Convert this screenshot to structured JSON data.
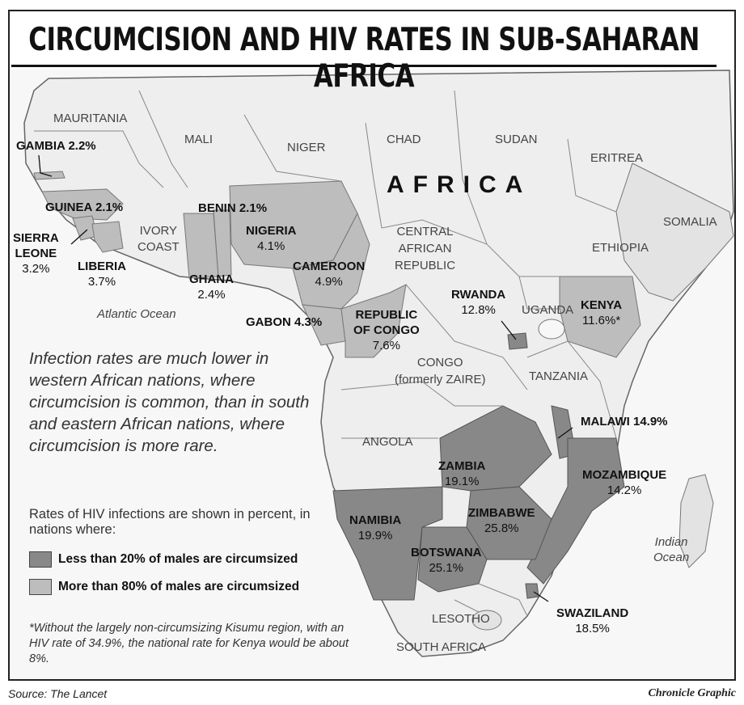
{
  "title": "CIRCUMCISION AND HIV RATES IN SUB-SAHARAN AFRICA",
  "colors": {
    "dark": "#888888",
    "light": "#bdbdbd",
    "land": "#eeeeee",
    "other_land": "#e3e3e3",
    "ocean": "#f7f7f7",
    "border": "#777777"
  },
  "continent_label": "AFRICA",
  "oceans": {
    "atlantic": "Atlantic Ocean",
    "indian_line1": "Indian",
    "indian_line2": "Ocean"
  },
  "countries": {
    "mauritania": "MAURITANIA",
    "mali": "MALI",
    "niger": "NIGER",
    "chad": "CHAD",
    "sudan": "SUDAN",
    "eritrea": "ERITREA",
    "somalia": "SOMALIA",
    "ethiopia": "ETHIOPIA",
    "car_line1": "CENTRAL",
    "car_line2": "AFRICAN",
    "car_line3": "REPUBLIC",
    "ivory_line1": "IVORY",
    "ivory_line2": "COAST",
    "uganda": "UGANDA",
    "congo_line1": "CONGO",
    "congo_line2": "(formerly ZAIRE)",
    "tanzania": "TANZANIA",
    "angola": "ANGOLA",
    "lesotho": "LESOTHO",
    "south_africa": "SOUTH AFRICA"
  },
  "rates": {
    "gambia": "GAMBIA 2.2%",
    "guinea": "GUINEA 2.1%",
    "sierra_leone_line1": "SIERRA",
    "sierra_leone_line2": "LEONE",
    "sierra_leone_pct": "3.2%",
    "liberia": "LIBERIA",
    "liberia_pct": "3.7%",
    "benin": "BENIN 2.1%",
    "nigeria": "NIGERIA",
    "nigeria_pct": "4.1%",
    "ghana": "GHANA",
    "ghana_pct": "2.4%",
    "cameroon": "CAMEROON",
    "cameroon_pct": "4.9%",
    "gabon": "GABON 4.3%",
    "roc_line1": "REPUBLIC",
    "roc_line2": "OF CONGO",
    "roc_pct": "7.6%",
    "rwanda": "RWANDA",
    "rwanda_pct": "12.8%",
    "kenya": "KENYA",
    "kenya_pct": "11.6%*",
    "malawi": "MALAWI 14.9%",
    "zambia": "ZAMBIA",
    "zambia_pct": "19.1%",
    "mozambique": "MOZAMBIQUE",
    "mozambique_pct": "14.2%",
    "namibia": "NAMIBIA",
    "namibia_pct": "19.9%",
    "zimbabwe": "ZIMBABWE",
    "zimbabwe_pct": "25.8%",
    "botswana": "BOTSWANA",
    "botswana_pct": "25.1%",
    "swaziland": "SWAZILAND",
    "swaziland_pct": "18.5%"
  },
  "note": "Infection rates are much lower in western African nations, where circumcision is common, than in south and eastern African nations, where circumcision is more rare.",
  "legend": {
    "intro": "Rates of HIV infections are shown in percent, in nations where:",
    "dark_label": "Less than 20% of males are circumsized",
    "light_label": "More than 80% of males are circumsized"
  },
  "footnote": "*Without the largely non-circumsizing Kisumu region, with an HIV rate of 34.9%, the national rate for Kenya would be about 8%.",
  "source": "Source: The Lancet",
  "credit": "Chronicle Graphic"
}
